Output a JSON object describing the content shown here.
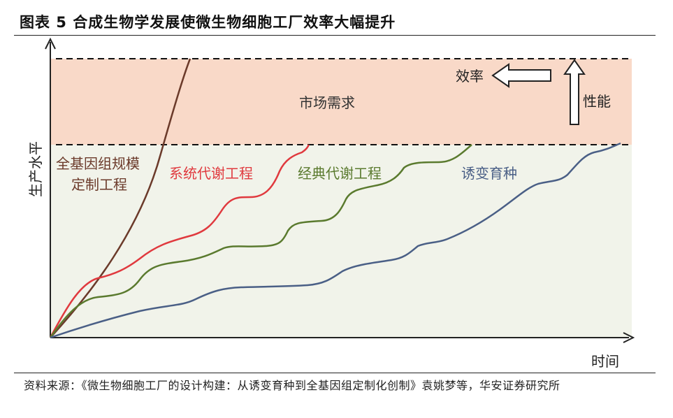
{
  "figure": {
    "title": "图表 5 合成生物学发展使微生物细胞工厂效率大幅提升",
    "source": "资料来源：《微生物细胞工厂的设计构建：从诱变育种到全基因组定制化创制》袁姚梦等，华安证券研究所"
  },
  "diagram": {
    "y_axis_label": "生产水平",
    "x_axis_label": "时间",
    "bands": {
      "market_demand": {
        "label": "市场需求",
        "color": "#f9d9c8"
      },
      "below_demand": {
        "color": "#f1f3ea"
      }
    },
    "annotations": {
      "efficiency": "效率",
      "performance": "性能"
    },
    "curves": [
      {
        "id": "genome-scale",
        "label_lines": [
          "全基因组规模",
          "定制工程"
        ],
        "color": "#6b3a2a"
      },
      {
        "id": "systems-metabolic",
        "label": "系统代谢工程",
        "color": "#e0393e"
      },
      {
        "id": "classical-metabolic",
        "label": "经典代谢工程",
        "color": "#5a7a2e"
      },
      {
        "id": "mutation-breeding",
        "label": "诱变育种",
        "color": "#4a5f86"
      }
    ]
  }
}
